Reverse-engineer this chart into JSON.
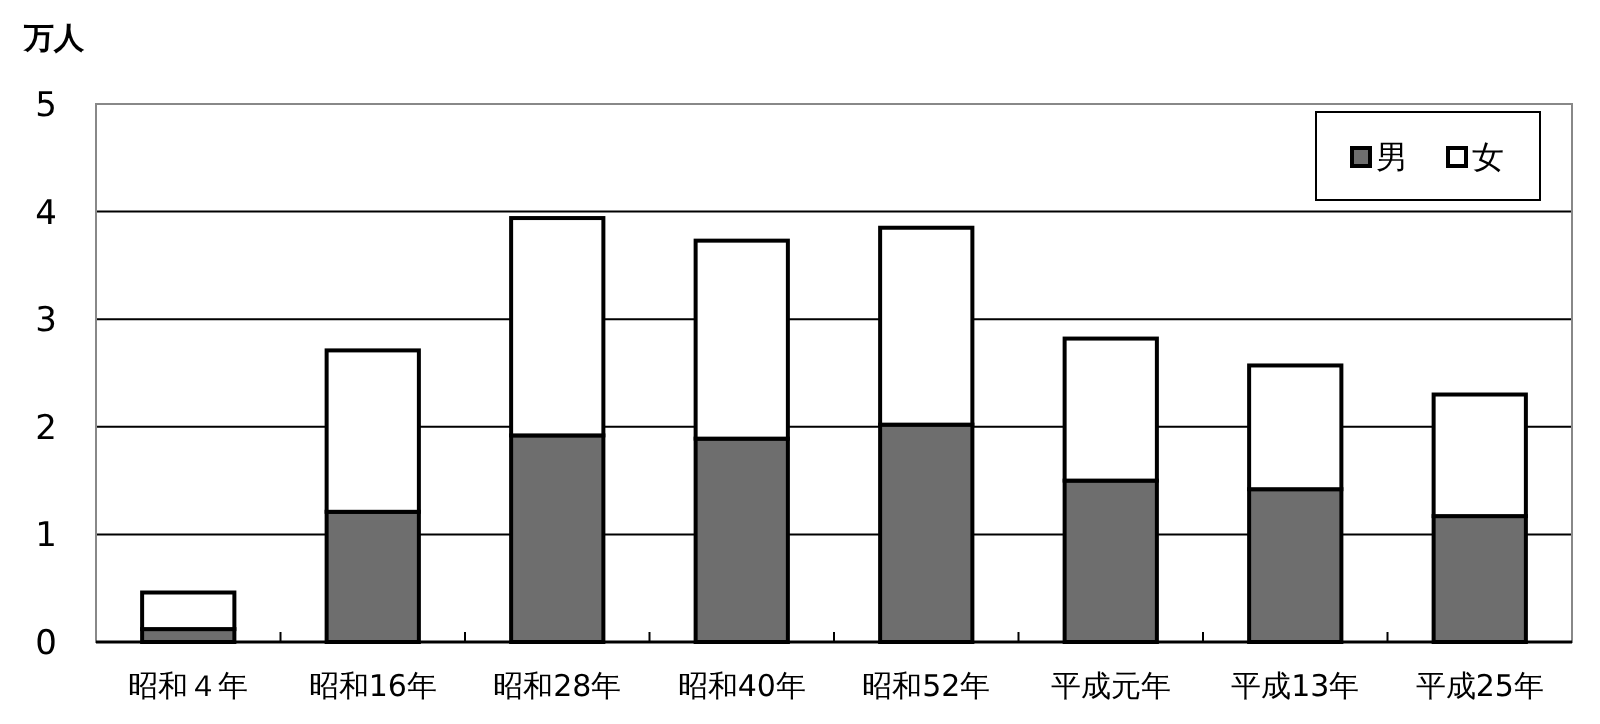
{
  "chart_data": {
    "type": "bar",
    "stacked": true,
    "ylabel": "万人",
    "categories": [
      "昭和４年",
      "昭和16年",
      "昭和28年",
      "昭和40年",
      "昭和52年",
      "平成元年",
      "平成13年",
      "平成25年"
    ],
    "series": [
      {
        "name": "男",
        "color": "#6e6e6e",
        "values": [
          0.12,
          1.21,
          1.92,
          1.89,
          2.02,
          1.5,
          1.42,
          1.17
        ]
      },
      {
        "name": "女",
        "color": "#ffffff",
        "values": [
          0.34,
          1.5,
          2.02,
          1.84,
          1.83,
          1.32,
          1.15,
          1.13
        ]
      }
    ],
    "ylim": [
      0,
      5
    ],
    "yticks": [
      0,
      1,
      2,
      3,
      4,
      5
    ],
    "grid": "y",
    "legend": "top right"
  }
}
